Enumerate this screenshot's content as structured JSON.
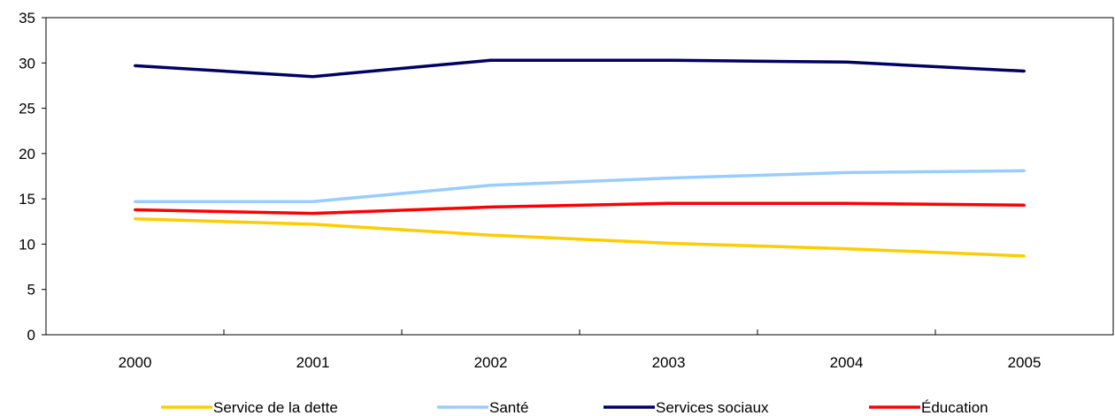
{
  "chart_data": {
    "type": "line",
    "categories": [
      "2000",
      "2001",
      "2002",
      "2003",
      "2004",
      "2005"
    ],
    "ylim": [
      0,
      35
    ],
    "yticks": [
      "0",
      "5",
      "10",
      "15",
      "20",
      "25",
      "30",
      "35"
    ],
    "grid": false,
    "legend_position": "bottom",
    "series": [
      {
        "name": "Service de la dette",
        "color": "#FFCC00",
        "values": [
          12.8,
          12.2,
          11.0,
          10.1,
          9.5,
          8.7
        ]
      },
      {
        "name": "Santé",
        "color": "#99CCFF",
        "values": [
          14.7,
          14.7,
          16.5,
          17.3,
          17.9,
          18.1
        ]
      },
      {
        "name": "Services sociaux",
        "color": "#000066",
        "values": [
          29.7,
          28.5,
          30.3,
          30.3,
          30.1,
          29.1
        ]
      },
      {
        "name": "Éducation",
        "color": "#FF0000",
        "values": [
          13.8,
          13.4,
          14.1,
          14.5,
          14.5,
          14.3
        ]
      }
    ]
  }
}
